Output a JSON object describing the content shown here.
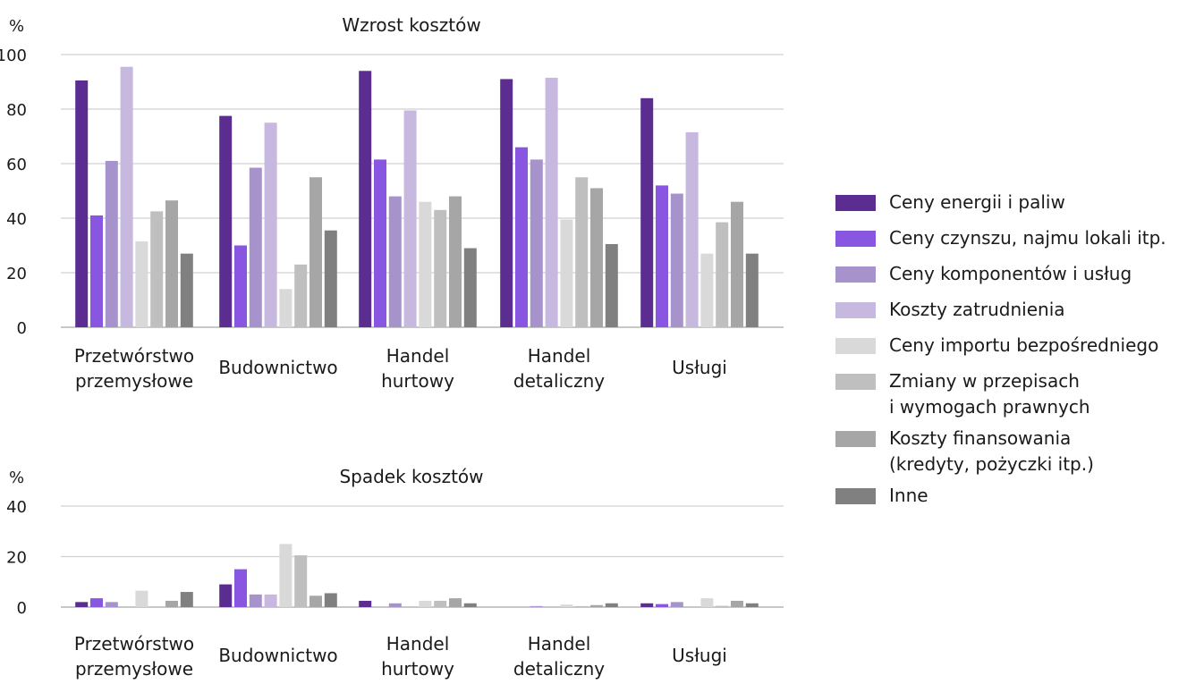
{
  "legend": [
    {
      "line1": "Ceny energii i paliw",
      "line2": "",
      "color": "#5c2d91"
    },
    {
      "line1": "Ceny czynszu, najmu lokali itp.",
      "line2": "",
      "color": "#8856e0"
    },
    {
      "line1": "Ceny komponentów i usług",
      "line2": "",
      "color": "#a793cc"
    },
    {
      "line1": "Koszty zatrudnienia",
      "line2": "",
      "color": "#c6b8df"
    },
    {
      "line1": "Ceny importu bezpośredniego",
      "line2": "",
      "color": "#d9d9d9"
    },
    {
      "line1": "Zmiany w przepisach",
      "line2": "i wymogach prawnych",
      "color": "#bfbfbf"
    },
    {
      "line1": "Koszty finansowania",
      "line2": "(kredyty, pożyczki itp.)",
      "color": "#a6a6a6"
    },
    {
      "line1": "Inne",
      "line2": "",
      "color": "#808080"
    }
  ],
  "chart_data": [
    {
      "type": "bar",
      "title": "Wzrost kosztów",
      "ylabel": "%",
      "ylim": [
        0,
        100
      ],
      "yticks": [
        0,
        20,
        40,
        60,
        80,
        100
      ],
      "grid": true,
      "legend_position": "right",
      "categories": [
        [
          "Przetwórstwo",
          "przemysłowe"
        ],
        [
          "Budownictwo"
        ],
        [
          "Handel",
          "hurtowy"
        ],
        [
          "Handel",
          "detaliczny"
        ],
        [
          "Usługi"
        ]
      ],
      "series": [
        {
          "name": "Ceny energii i paliw",
          "values": [
            90.5,
            77.5,
            94,
            91,
            84
          ]
        },
        {
          "name": "Ceny czynszu, najmu lokali itp.",
          "values": [
            41,
            30,
            61.5,
            66,
            52
          ]
        },
        {
          "name": "Ceny komponentów i usług",
          "values": [
            61,
            58.5,
            48,
            61.5,
            49
          ]
        },
        {
          "name": "Koszty zatrudnienia",
          "values": [
            95.5,
            75,
            79.5,
            91.5,
            71.5
          ]
        },
        {
          "name": "Ceny importu bezpośredniego",
          "values": [
            31.5,
            14,
            46,
            39.5,
            27
          ]
        },
        {
          "name": "Zmiany w przepisach i wymogach prawnych",
          "values": [
            42.5,
            23,
            43,
            55,
            38.5
          ]
        },
        {
          "name": "Koszty finansowania (kredyty, pożyczki itp.)",
          "values": [
            46.5,
            55,
            48,
            51,
            46
          ]
        },
        {
          "name": "Inne",
          "values": [
            27,
            35.5,
            29,
            30.5,
            27
          ]
        }
      ]
    },
    {
      "type": "bar",
      "title": "Spadek kosztów",
      "ylabel": "%",
      "ylim": [
        0,
        40
      ],
      "yticks": [
        0,
        20,
        40
      ],
      "grid": true,
      "legend_position": "right",
      "categories": [
        [
          "Przetwórstwo",
          "przemysłowe"
        ],
        [
          "Budownictwo"
        ],
        [
          "Handel",
          "hurtowy"
        ],
        [
          "Handel",
          "detaliczny"
        ],
        [
          "Usługi"
        ]
      ],
      "series": [
        {
          "name": "Ceny energii i paliw",
          "values": [
            2,
            9,
            2.5,
            0,
            1.5
          ]
        },
        {
          "name": "Ceny czynszu, najmu lokali itp.",
          "values": [
            3.5,
            15,
            0,
            0,
            1.2
          ]
        },
        {
          "name": "Ceny komponentów i usług",
          "values": [
            2,
            5,
            1.5,
            0.4,
            2
          ]
        },
        {
          "name": "Koszty zatrudnienia",
          "values": [
            0,
            5,
            0,
            0,
            0
          ]
        },
        {
          "name": "Ceny importu bezpośredniego",
          "values": [
            6.5,
            25,
            2.5,
            1,
            3.5
          ]
        },
        {
          "name": "Zmiany w przepisach i wymogach prawnych",
          "values": [
            0,
            20.5,
            2.5,
            0.4,
            0.5
          ]
        },
        {
          "name": "Koszty finansowania (kredyty, pożyczki itp.)",
          "values": [
            2.5,
            4.5,
            3.5,
            0.8,
            2.5
          ]
        },
        {
          "name": "Inne",
          "values": [
            6,
            5.5,
            1.5,
            1.5,
            1.5
          ]
        }
      ]
    }
  ]
}
